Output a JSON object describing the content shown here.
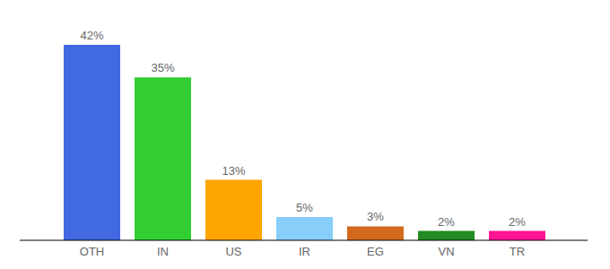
{
  "chart_data": {
    "type": "bar",
    "categories": [
      "OTH",
      "IN",
      "US",
      "IR",
      "EG",
      "VN",
      "TR"
    ],
    "values": [
      42,
      35,
      13,
      5,
      3,
      2,
      2
    ],
    "value_labels": [
      "42%",
      "35%",
      "13%",
      "5%",
      "3%",
      "2%",
      "2%"
    ],
    "colors": [
      "#4169e1",
      "#32cd32",
      "#ffa500",
      "#87cefa",
      "#d2691e",
      "#228b22",
      "#ff1493"
    ],
    "data_labels": true,
    "tick_labels": "x"
  }
}
